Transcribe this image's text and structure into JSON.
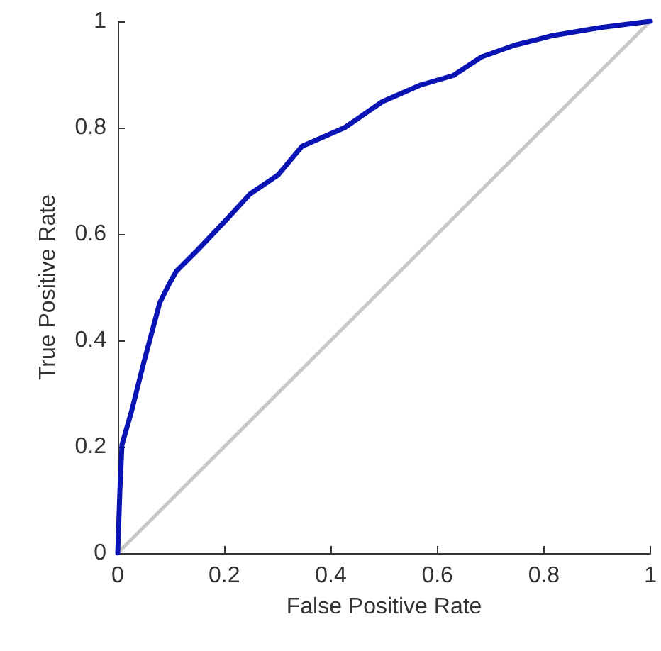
{
  "chart_data": {
    "type": "line",
    "xlabel": "False Positive Rate",
    "ylabel": "True Positive Rate",
    "xlim": [
      0,
      1
    ],
    "ylim": [
      0,
      1
    ],
    "xticks": [
      0,
      0.2,
      0.4,
      0.6,
      0.8,
      1
    ],
    "yticks": [
      0,
      0.2,
      0.4,
      0.6,
      0.8,
      1
    ],
    "grid": false,
    "marker": "none",
    "line_style": "solid",
    "series": [
      {
        "color": "#c8c8c8",
        "x": [
          0,
          1
        ],
        "values": [
          0,
          1
        ]
      },
      {
        "color": "#0a14b4",
        "x": [
          0,
          0.004,
          0.008,
          0.026,
          0.048,
          0.079,
          0.097,
          0.11,
          0.15,
          0.204,
          0.248,
          0.301,
          0.346,
          0.426,
          0.497,
          0.568,
          0.63,
          0.683,
          0.745,
          0.816,
          0.905,
          1
        ],
        "values": [
          0,
          0.116,
          0.204,
          0.267,
          0.355,
          0.471,
          0.507,
          0.53,
          0.57,
          0.627,
          0.675,
          0.711,
          0.765,
          0.8,
          0.849,
          0.88,
          0.898,
          0.933,
          0.955,
          0.973,
          0.988,
          1
        ]
      }
    ]
  }
}
